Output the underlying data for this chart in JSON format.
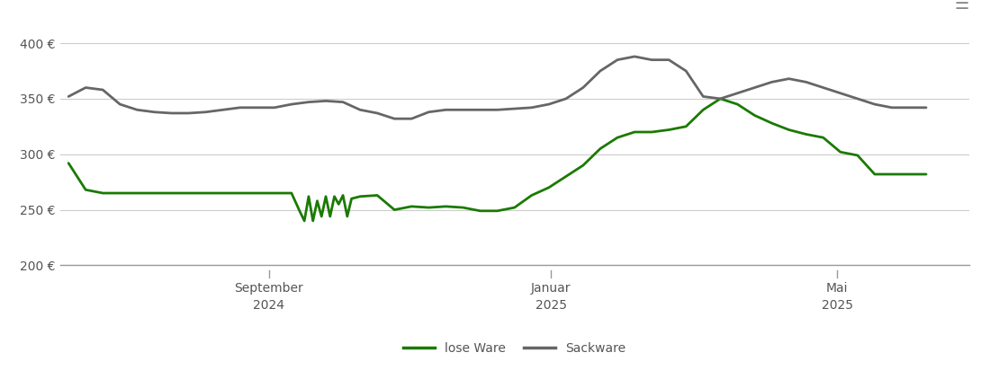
{
  "background_color": "#ffffff",
  "grid_color": "#cccccc",
  "ylim": [
    200,
    415
  ],
  "yticks": [
    200,
    250,
    300,
    350,
    400
  ],
  "ytick_labels": [
    "200 €",
    "250 €",
    "300 €",
    "350 €",
    "400 €"
  ],
  "x_tick_positions": [
    0.23,
    0.54,
    0.855
  ],
  "x_tick_labels_line1": [
    "September",
    "Januar",
    "Mai"
  ],
  "x_tick_labels_line2": [
    "2024",
    "2025",
    "2025"
  ],
  "legend_labels": [
    "lose Ware",
    "Sackware"
  ],
  "legend_colors": [
    "#1a7a00",
    "#666666"
  ],
  "line_width": 2.0,
  "lose_ware_color": "#1a7a00",
  "sackware_color": "#666666",
  "lose_ware_x": [
    0.0,
    0.02,
    0.04,
    0.06,
    0.08,
    0.1,
    0.12,
    0.14,
    0.16,
    0.18,
    0.2,
    0.22,
    0.24,
    0.26,
    0.27,
    0.275,
    0.28,
    0.285,
    0.29,
    0.295,
    0.3,
    0.305,
    0.31,
    0.315,
    0.32,
    0.325,
    0.33,
    0.34,
    0.36,
    0.38,
    0.4,
    0.42,
    0.44,
    0.46,
    0.48,
    0.5,
    0.52,
    0.54,
    0.56,
    0.58,
    0.6,
    0.62,
    0.64,
    0.66,
    0.68,
    0.7,
    0.72,
    0.74,
    0.76,
    0.78,
    0.8,
    0.82,
    0.84,
    0.86,
    0.88,
    0.9,
    0.92,
    0.94,
    0.96,
    0.98,
    1.0
  ],
  "lose_ware_y": [
    292,
    268,
    265,
    265,
    265,
    265,
    265,
    265,
    265,
    265,
    265,
    265,
    265,
    265,
    248,
    240,
    262,
    240,
    258,
    244,
    262,
    244,
    262,
    255,
    263,
    244,
    260,
    262,
    263,
    250,
    253,
    252,
    253,
    252,
    249,
    249,
    252,
    263,
    270,
    280,
    290,
    305,
    315,
    320,
    320,
    322,
    325,
    340,
    350,
    345,
    335,
    328,
    322,
    318,
    315,
    302,
    299,
    282,
    282,
    282,
    282
  ],
  "sackware_x": [
    0.0,
    0.02,
    0.04,
    0.06,
    0.08,
    0.1,
    0.12,
    0.14,
    0.16,
    0.18,
    0.2,
    0.22,
    0.24,
    0.26,
    0.28,
    0.3,
    0.32,
    0.34,
    0.36,
    0.38,
    0.4,
    0.42,
    0.44,
    0.46,
    0.48,
    0.5,
    0.52,
    0.54,
    0.56,
    0.58,
    0.6,
    0.62,
    0.64,
    0.66,
    0.68,
    0.7,
    0.72,
    0.74,
    0.76,
    0.78,
    0.8,
    0.82,
    0.84,
    0.86,
    0.88,
    0.9,
    0.92,
    0.94,
    0.96,
    0.98,
    1.0
  ],
  "sackware_y": [
    352,
    360,
    358,
    345,
    340,
    338,
    337,
    337,
    338,
    340,
    342,
    342,
    342,
    345,
    347,
    348,
    347,
    340,
    337,
    332,
    332,
    338,
    340,
    340,
    340,
    340,
    341,
    342,
    345,
    350,
    360,
    375,
    385,
    388,
    385,
    385,
    375,
    352,
    350,
    355,
    360,
    365,
    368,
    365,
    360,
    355,
    350,
    345,
    342,
    342,
    342
  ]
}
